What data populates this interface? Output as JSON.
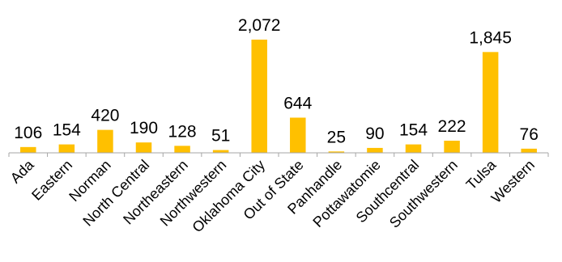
{
  "chart_data": {
    "type": "bar",
    "title": "",
    "xlabel": "",
    "ylabel": "",
    "categories": [
      "Ada",
      "Eastern",
      "Norman",
      "North Central",
      "Northeastern",
      "Northwestern",
      "Oklahoma City",
      "Out of State",
      "Panhandle",
      "Pottawatomie",
      "Southcentral",
      "Southwestern",
      "Tulsa",
      "Western"
    ],
    "values": [
      106,
      154,
      420,
      190,
      128,
      51,
      2072,
      644,
      25,
      90,
      154,
      222,
      1845,
      76
    ],
    "value_labels": [
      "106",
      "154",
      "420",
      "190",
      "128",
      "51",
      "2,072",
      "644",
      "25",
      "90",
      "154",
      "222",
      "1,845",
      "76"
    ],
    "ylim": [
      0,
      2072
    ],
    "grid": false,
    "legend": "none",
    "bar_color": "#FFC000",
    "axis_color": "#A6A6A6"
  }
}
